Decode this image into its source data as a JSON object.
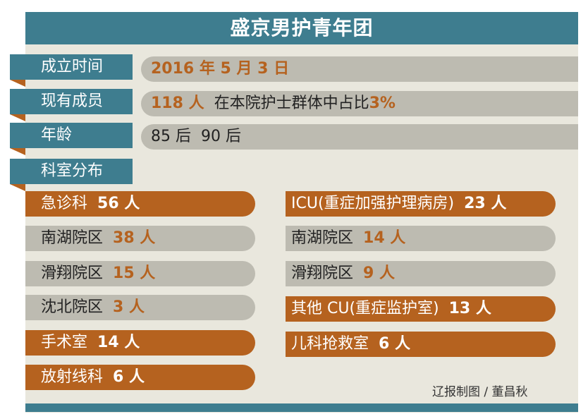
{
  "title": "盛京男护青年团",
  "rows": [
    {
      "label": "成立时间",
      "value": "2016 年 5 月 3 日"
    },
    {
      "label": "现有成员",
      "value": "118 人",
      "extra": "在本院护士群体中占比",
      "extra_value": "3%"
    },
    {
      "label": "年龄",
      "value": "85 后  90 后"
    },
    {
      "label": "科室分布"
    }
  ],
  "left": [
    {
      "name": "急诊科",
      "count": "56 人",
      "style": "orange"
    },
    {
      "name": "南湖院区",
      "count": "38 人",
      "style": "grey"
    },
    {
      "name": "滑翔院区",
      "count": "15 人",
      "style": "grey"
    },
    {
      "name": "沈北院区",
      "count": "3 人",
      "style": "grey"
    },
    {
      "name": "手术室",
      "count": "14 人",
      "style": "orange"
    },
    {
      "name": "放射线科",
      "count": "6 人",
      "style": "orange"
    }
  ],
  "right": [
    {
      "name": "ICU(重症加强护理病房)",
      "count": "23 人",
      "style": "orange"
    },
    {
      "name": "南湖院区",
      "count": "14 人",
      "style": "grey"
    },
    {
      "name": "滑翔院区",
      "count": "9 人",
      "style": "grey"
    },
    {
      "name": "其他 CU(重症监护室)",
      "count": "13 人",
      "style": "orange"
    },
    {
      "name": "儿科抢救室",
      "count": "6 人",
      "style": "orange"
    }
  ],
  "credit": "辽报制图 / 董昌秋",
  "colors": {
    "teal": "#3e7d8f",
    "orange": "#b5621f",
    "grey": "#bdbbb1",
    "background": "#e9e7dd"
  }
}
